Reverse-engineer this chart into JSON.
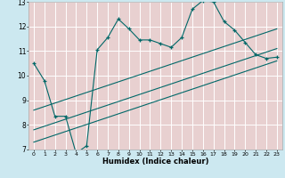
{
  "xlabel": "Humidex (Indice chaleur)",
  "bg_color": "#cce8f0",
  "plot_bg_color": "#e8d0d0",
  "grid_color": "#ffffff",
  "line_color": "#006868",
  "xlim": [
    -0.5,
    23.5
  ],
  "ylim": [
    7,
    13
  ],
  "xticks": [
    0,
    1,
    2,
    3,
    4,
    5,
    6,
    7,
    8,
    9,
    10,
    11,
    12,
    13,
    14,
    15,
    16,
    17,
    18,
    19,
    20,
    21,
    22,
    23
  ],
  "yticks": [
    7,
    8,
    9,
    10,
    11,
    12,
    13
  ],
  "main_x": [
    0,
    1,
    2,
    3,
    4,
    5,
    6,
    7,
    8,
    9,
    10,
    11,
    12,
    13,
    14,
    15,
    16,
    17,
    18,
    19,
    20,
    21,
    22,
    23
  ],
  "main_y": [
    10.5,
    9.8,
    8.35,
    8.35,
    6.85,
    7.15,
    11.05,
    11.55,
    12.3,
    11.9,
    11.45,
    11.45,
    11.3,
    11.15,
    11.55,
    12.7,
    13.05,
    13.0,
    12.2,
    11.85,
    11.35,
    10.85,
    10.7,
    10.75
  ],
  "line1_x": [
    0,
    23
  ],
  "line1_y": [
    8.6,
    11.9
  ],
  "line2_x": [
    0,
    23
  ],
  "line2_y": [
    7.8,
    11.1
  ],
  "line3_x": [
    0,
    23
  ],
  "line3_y": [
    7.3,
    10.6
  ]
}
